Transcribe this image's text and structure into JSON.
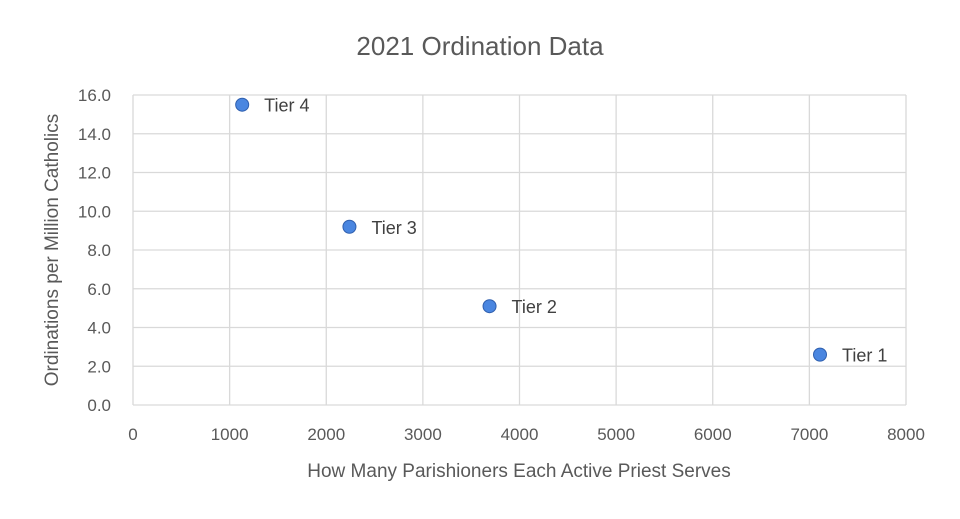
{
  "chart_data": {
    "type": "scatter",
    "title": "2021 Ordination Data",
    "xlabel": "How Many Parishioners Each Active Priest Serves",
    "ylabel": "Ordinations per Million Catholics",
    "xlim": [
      0,
      8000
    ],
    "ylim": [
      0,
      16
    ],
    "x_ticks": [
      0,
      1000,
      2000,
      3000,
      4000,
      5000,
      6000,
      7000,
      8000
    ],
    "x_tick_labels": [
      "0",
      "1000",
      "2000",
      "3000",
      "4000",
      "5000",
      "6000",
      "7000",
      "8000"
    ],
    "y_ticks": [
      0,
      2,
      4,
      6,
      8,
      10,
      12,
      14,
      16
    ],
    "y_tick_labels": [
      "0.0",
      "2.0",
      "4.0",
      "6.0",
      "8.0",
      "10.0",
      "12.0",
      "14.0",
      "16.0"
    ],
    "grid": true,
    "legend": "none",
    "marker_color": "#4a86e0",
    "marker_edge_color": "#2f5fae",
    "points": [
      {
        "label": "Tier 4",
        "x": 1130,
        "y": 15.5
      },
      {
        "label": "Tier 3",
        "x": 2240,
        "y": 9.2
      },
      {
        "label": "Tier 2",
        "x": 3690,
        "y": 5.1
      },
      {
        "label": "Tier 1",
        "x": 7110,
        "y": 2.6
      }
    ]
  }
}
